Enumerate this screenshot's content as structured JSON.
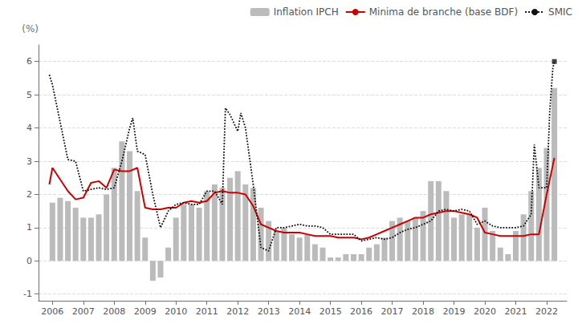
{
  "chart_data": {
    "type": "bar",
    "ylabel": "(%)",
    "xlim": [
      2005.55,
      2022.65
    ],
    "xticks": [
      2006,
      2007,
      2008,
      2009,
      2010,
      2011,
      2012,
      2013,
      2014,
      2015,
      2016,
      2017,
      2018,
      2019,
      2020,
      2021,
      2022
    ],
    "ylim": [
      -1.2,
      6.5
    ],
    "yticks": [
      -1,
      0,
      1,
      2,
      3,
      4,
      5,
      6
    ],
    "grid": true,
    "legend": "upper right",
    "series": [
      {
        "name": "Inflation IPCH",
        "type": "bar",
        "color": "#bbbbbb",
        "x": [
          2006.0,
          2006.25,
          2006.5,
          2006.75,
          2007.0,
          2007.25,
          2007.5,
          2007.75,
          2008.0,
          2008.25,
          2008.5,
          2008.75,
          2009.0,
          2009.25,
          2009.5,
          2009.75,
          2010.0,
          2010.25,
          2010.5,
          2010.75,
          2011.0,
          2011.25,
          2011.5,
          2011.75,
          2012.0,
          2012.25,
          2012.5,
          2012.75,
          2013.0,
          2013.25,
          2013.5,
          2013.75,
          2014.0,
          2014.25,
          2014.5,
          2014.75,
          2015.0,
          2015.25,
          2015.5,
          2015.75,
          2016.0,
          2016.25,
          2016.5,
          2016.75,
          2017.0,
          2017.25,
          2017.5,
          2017.75,
          2018.0,
          2018.25,
          2018.5,
          2018.75,
          2019.0,
          2019.25,
          2019.5,
          2019.75,
          2020.0,
          2020.25,
          2020.5,
          2020.75,
          2021.0,
          2021.25,
          2021.5,
          2021.75,
          2022.0,
          2022.25
        ],
        "values": [
          1.75,
          1.9,
          1.8,
          1.6,
          1.3,
          1.3,
          1.4,
          2.0,
          2.8,
          3.6,
          3.3,
          2.1,
          0.7,
          -0.6,
          -0.5,
          0.4,
          1.3,
          1.7,
          1.7,
          1.6,
          2.1,
          2.3,
          2.2,
          2.5,
          2.7,
          2.3,
          2.2,
          1.6,
          1.2,
          0.9,
          1.0,
          0.8,
          0.7,
          0.8,
          0.5,
          0.4,
          0.1,
          0.1,
          0.2,
          0.2,
          0.2,
          0.4,
          0.5,
          0.7,
          1.2,
          1.3,
          1.2,
          1.3,
          1.5,
          2.4,
          2.4,
          2.1,
          1.3,
          1.4,
          1.4,
          1.0,
          1.6,
          0.9,
          0.4,
          0.2,
          0.9,
          1.4,
          2.1,
          2.8,
          3.4,
          5.2
        ]
      },
      {
        "name": "Minima de branche (base BDF)",
        "type": "line",
        "color": "#cc0000",
        "line_style": "solid",
        "x": [
          2005.9,
          2006.0,
          2006.25,
          2006.5,
          2006.75,
          2007.0,
          2007.25,
          2007.5,
          2007.75,
          2008.0,
          2008.25,
          2008.5,
          2008.75,
          2009.0,
          2009.25,
          2009.5,
          2009.75,
          2010.0,
          2010.25,
          2010.5,
          2010.75,
          2011.0,
          2011.25,
          2011.5,
          2011.75,
          2012.0,
          2012.25,
          2012.5,
          2012.75,
          2013.0,
          2013.25,
          2013.5,
          2013.75,
          2014.0,
          2014.25,
          2014.5,
          2014.75,
          2015.0,
          2015.25,
          2015.5,
          2015.75,
          2016.0,
          2016.25,
          2016.5,
          2016.75,
          2017.0,
          2017.25,
          2017.5,
          2017.75,
          2018.0,
          2018.25,
          2018.5,
          2018.75,
          2019.0,
          2019.25,
          2019.5,
          2019.75,
          2020.0,
          2020.25,
          2020.5,
          2020.75,
          2021.0,
          2021.25,
          2021.5,
          2021.75,
          2022.0,
          2022.25
        ],
        "values": [
          2.3,
          2.8,
          2.45,
          2.1,
          1.85,
          1.9,
          2.35,
          2.4,
          2.2,
          2.75,
          2.7,
          2.7,
          2.8,
          1.6,
          1.55,
          1.55,
          1.6,
          1.6,
          1.75,
          1.8,
          1.75,
          1.8,
          2.05,
          2.1,
          2.05,
          2.05,
          2.0,
          1.65,
          1.1,
          1.0,
          0.9,
          0.85,
          0.85,
          0.85,
          0.8,
          0.75,
          0.75,
          0.75,
          0.7,
          0.7,
          0.7,
          0.65,
          0.7,
          0.8,
          0.9,
          1.0,
          1.1,
          1.2,
          1.3,
          1.3,
          1.4,
          1.45,
          1.5,
          1.5,
          1.45,
          1.4,
          1.3,
          0.85,
          0.8,
          0.75,
          0.75,
          0.75,
          0.75,
          0.8,
          0.8,
          2.0,
          3.1
        ]
      },
      {
        "name": "SMIC",
        "type": "line",
        "color": "#111111",
        "line_style": "dotted",
        "x": [
          2005.9,
          2006.0,
          2006.5,
          2006.75,
          2007.0,
          2007.25,
          2007.5,
          2007.75,
          2008.0,
          2008.25,
          2008.5,
          2008.6,
          2008.75,
          2009.0,
          2009.25,
          2009.5,
          2009.75,
          2010.0,
          2010.25,
          2010.5,
          2010.75,
          2011.0,
          2011.25,
          2011.5,
          2011.6,
          2011.75,
          2012.0,
          2012.1,
          2012.25,
          2012.5,
          2012.75,
          2013.0,
          2013.25,
          2013.5,
          2013.75,
          2014.0,
          2014.25,
          2014.5,
          2014.75,
          2015.0,
          2015.25,
          2015.5,
          2015.75,
          2016.0,
          2016.25,
          2016.5,
          2016.75,
          2017.0,
          2017.25,
          2017.5,
          2017.75,
          2018.0,
          2018.25,
          2018.5,
          2018.75,
          2019.0,
          2019.25,
          2019.5,
          2019.75,
          2020.0,
          2020.25,
          2020.5,
          2020.75,
          2021.0,
          2021.25,
          2021.5,
          2021.6,
          2021.75,
          2022.0,
          2022.1,
          2022.2,
          2022.25
        ],
        "values": [
          5.6,
          5.3,
          3.05,
          3.0,
          2.1,
          2.15,
          2.2,
          2.15,
          2.2,
          3.0,
          4.0,
          4.3,
          3.3,
          3.2,
          2.0,
          1.0,
          1.5,
          1.7,
          1.75,
          1.7,
          1.7,
          2.1,
          2.1,
          1.7,
          4.6,
          4.4,
          3.9,
          4.45,
          4.0,
          2.3,
          0.4,
          0.3,
          1.0,
          1.0,
          1.05,
          1.1,
          1.05,
          1.05,
          1.0,
          0.8,
          0.8,
          0.8,
          0.8,
          0.6,
          0.65,
          0.7,
          0.65,
          0.7,
          0.85,
          0.95,
          1.0,
          1.1,
          1.2,
          1.5,
          1.55,
          1.5,
          1.55,
          1.5,
          1.1,
          1.2,
          1.05,
          1.0,
          1.0,
          1.0,
          1.05,
          1.4,
          3.5,
          2.2,
          2.2,
          4.5,
          5.8,
          6.0
        ]
      },
      {
        "type": "scatter",
        "marker": "square",
        "color": "#111111",
        "x": [
          2022.25
        ],
        "values": [
          6.0
        ]
      }
    ]
  }
}
